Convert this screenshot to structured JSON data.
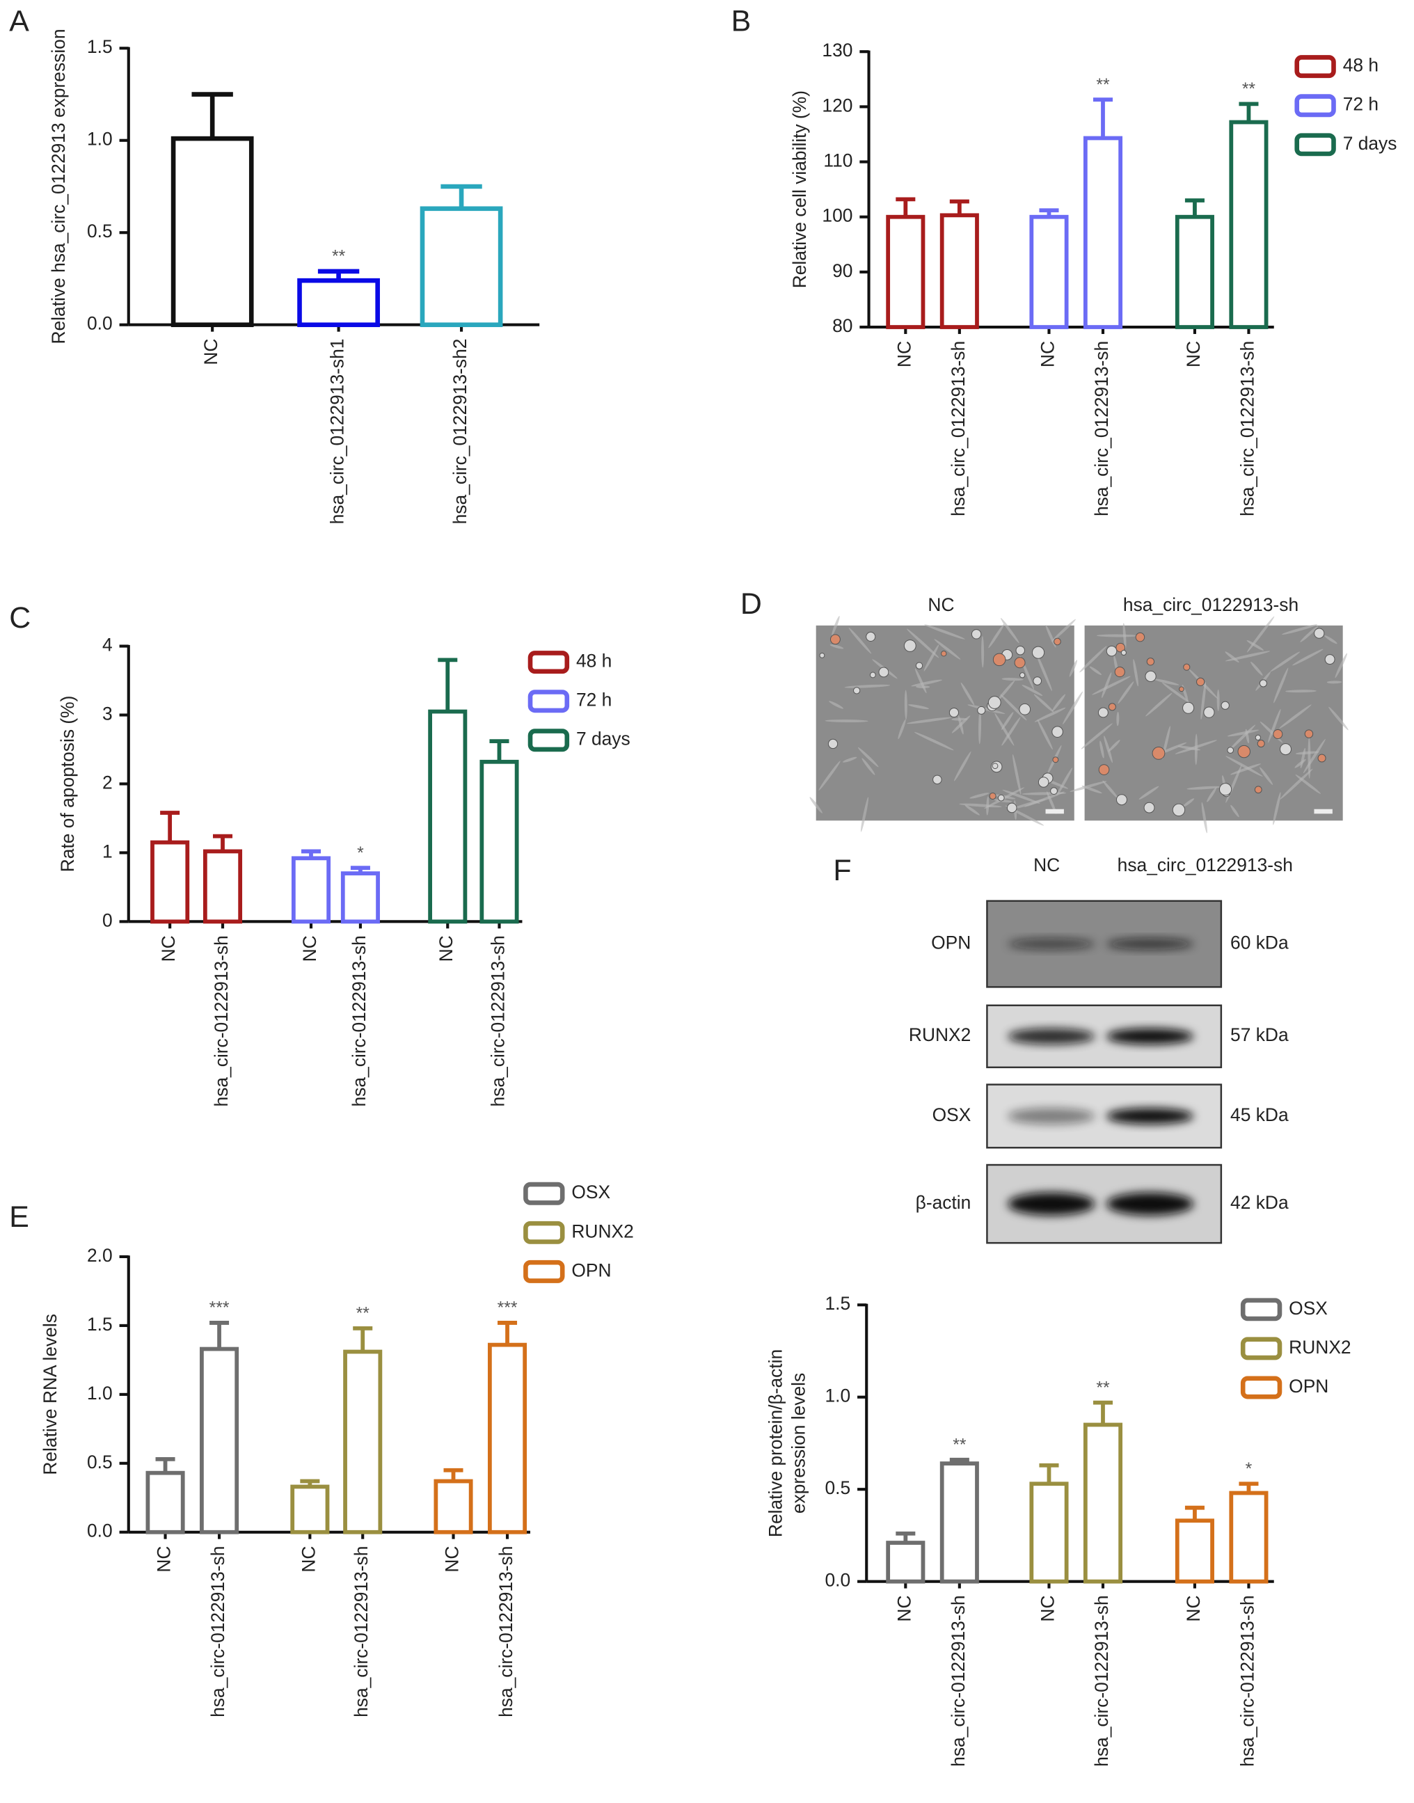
{
  "chart_data": [
    {
      "type": "bar",
      "panel": "A",
      "ylabel": "Relative hsa_circ_0122913 expression",
      "categories": [
        "NC",
        "hsa_circ_0122913-sh1",
        "hsa_circ_0122913-sh2"
      ],
      "values": [
        1.01,
        0.24,
        0.63
      ],
      "errors": [
        0.24,
        0.05,
        0.12
      ],
      "significance": [
        null,
        "**",
        null
      ],
      "colors": [
        "#111111",
        "#0a0ae6",
        "#2aa7bd"
      ],
      "ylim": [
        0,
        1.5
      ],
      "yticks": [
        {
          "value": 0,
          "label": "0.0"
        },
        0.5,
        {
          "value": 1,
          "label": "1.0"
        },
        1.5
      ]
    },
    {
      "type": "bar",
      "panel": "B",
      "ylabel": "Relative cell viability (%)",
      "categories": [
        "NC",
        "hsa_circ_0122913-sh",
        "NC",
        "hsa_circ_0122913-sh",
        "NC",
        "hsa_circ_0122913-sh"
      ],
      "series": [
        {
          "name": "48 h",
          "color": "#a81c1c",
          "values": [
            100,
            100.3,
            null,
            null,
            null,
            null
          ],
          "errors": [
            3.2,
            2.5,
            null,
            null,
            null,
            null
          ],
          "significance": [
            null,
            null,
            null,
            null,
            null,
            null
          ]
        },
        {
          "name": "72 h",
          "color": "#6b6bf5",
          "values": [
            null,
            null,
            100,
            114.3,
            null,
            null
          ],
          "errors": [
            null,
            null,
            1.2,
            7,
            null,
            null
          ],
          "significance": [
            null,
            null,
            null,
            "**",
            null,
            null
          ]
        },
        {
          "name": "7 days",
          "color": "#1a6b4e",
          "values": [
            null,
            null,
            null,
            null,
            100,
            117.2
          ],
          "errors": [
            null,
            null,
            null,
            null,
            3,
            3.3
          ],
          "significance": [
            null,
            null,
            null,
            null,
            null,
            "**"
          ]
        }
      ],
      "ylim": [
        80,
        130
      ],
      "yticks": [
        80,
        90,
        100,
        110,
        120,
        130
      ]
    },
    {
      "type": "bar",
      "panel": "C",
      "ylabel": "Rate of apoptosis (%)",
      "categories": [
        "NC",
        "hsa_circ-0122913-sh",
        "NC",
        "hsa_circ-0122913-sh",
        "NC",
        "hsa_circ-0122913-sh"
      ],
      "series": [
        {
          "name": "48 h",
          "color": "#a81c1c",
          "values": [
            1.15,
            1.02,
            null,
            null,
            null,
            null
          ],
          "errors": [
            0.43,
            0.22,
            null,
            null,
            null,
            null
          ],
          "significance": [
            null,
            null,
            null,
            null,
            null,
            null
          ]
        },
        {
          "name": "72 h",
          "color": "#6b6bf5",
          "values": [
            null,
            null,
            0.92,
            0.7,
            null,
            null
          ],
          "errors": [
            null,
            null,
            0.1,
            0.08,
            null,
            null
          ],
          "significance": [
            null,
            null,
            null,
            "*",
            null,
            null
          ]
        },
        {
          "name": "7 days",
          "color": "#1a6b4e",
          "values": [
            null,
            null,
            null,
            null,
            3.05,
            2.32
          ],
          "errors": [
            null,
            null,
            null,
            null,
            0.75,
            0.3
          ],
          "significance": [
            null,
            null,
            null,
            null,
            null,
            null
          ]
        }
      ],
      "ylim": [
        0,
        4
      ],
      "yticks": [
        0,
        1,
        2,
        3,
        4
      ]
    },
    {
      "type": "bar",
      "panel": "E",
      "ylabel": "Relative RNA levels",
      "categories": [
        "NC",
        "hsa_circ-0122913-sh",
        "NC",
        "hsa_circ-0122913-sh",
        "NC",
        "hsa_circ-0122913-sh"
      ],
      "series": [
        {
          "name": "OSX",
          "color": "#6e6e6e",
          "values": [
            0.43,
            1.33,
            null,
            null,
            null,
            null
          ],
          "errors": [
            0.1,
            0.19,
            null,
            null,
            null,
            null
          ],
          "significance": [
            null,
            "***",
            null,
            null,
            null,
            null
          ]
        },
        {
          "name": "RUNX2",
          "color": "#9a8f40",
          "values": [
            null,
            null,
            0.33,
            1.31,
            null,
            null
          ],
          "errors": [
            null,
            null,
            0.04,
            0.17,
            null,
            null
          ],
          "significance": [
            null,
            null,
            null,
            "**",
            null,
            null
          ]
        },
        {
          "name": "OPN",
          "color": "#d4701a",
          "values": [
            null,
            null,
            null,
            null,
            0.37,
            1.36
          ],
          "errors": [
            null,
            null,
            null,
            null,
            0.08,
            0.16
          ],
          "significance": [
            null,
            null,
            null,
            null,
            null,
            "***"
          ]
        }
      ],
      "ylim": [
        0,
        2
      ],
      "yticks": [
        {
          "value": 0,
          "label": "0.0"
        },
        0.5,
        {
          "value": 1,
          "label": "1.0"
        },
        1.5,
        {
          "value": 2,
          "label": "2.0"
        }
      ]
    },
    {
      "type": "bar",
      "ylabel": [
        "Relative protein/β-actin",
        "expression levels"
      ],
      "categories": [
        "NC",
        "hsa_circ-0122913-sh",
        "NC",
        "hsa_circ-0122913-sh",
        "NC",
        "hsa_circ-0122913-sh"
      ],
      "series": [
        {
          "name": "OSX",
          "color": "#6e6e6e",
          "values": [
            0.21,
            0.64,
            null,
            null,
            null,
            null
          ],
          "errors": [
            0.05,
            0.02,
            null,
            null,
            null,
            null
          ],
          "significance": [
            null,
            "**",
            null,
            null,
            null,
            null
          ]
        },
        {
          "name": "RUNX2",
          "color": "#9a8f40",
          "values": [
            null,
            null,
            0.53,
            0.85,
            null,
            null
          ],
          "errors": [
            null,
            null,
            0.1,
            0.12,
            null,
            null
          ],
          "significance": [
            null,
            null,
            null,
            "**",
            null,
            null
          ]
        },
        {
          "name": "OPN",
          "color": "#d4701a",
          "values": [
            null,
            null,
            null,
            null,
            0.33,
            0.48
          ],
          "errors": [
            null,
            null,
            null,
            null,
            0.07,
            0.05
          ],
          "significance": [
            null,
            null,
            null,
            null,
            null,
            "*"
          ]
        }
      ],
      "ylim": [
        0,
        1.5
      ],
      "yticks": [
        {
          "value": 0,
          "label": "0.0"
        },
        0.5,
        {
          "value": 1,
          "label": "1.0"
        },
        1.5
      ]
    }
  ],
  "micrographs": {
    "panel": "D",
    "labels": [
      "NC",
      "hsa_circ_0122913-sh"
    ]
  },
  "blot": {
    "panel": "F",
    "lanes": [
      "NC",
      "hsa_circ_0122913-sh"
    ],
    "rows": [
      {
        "protein": "OPN",
        "size": "60 kDa"
      },
      {
        "protein": "RUNX2",
        "size": "57 kDa"
      },
      {
        "protein": "OSX",
        "size": "45 kDa"
      },
      {
        "protein": "β-actin",
        "size": "42 kDa"
      }
    ]
  }
}
